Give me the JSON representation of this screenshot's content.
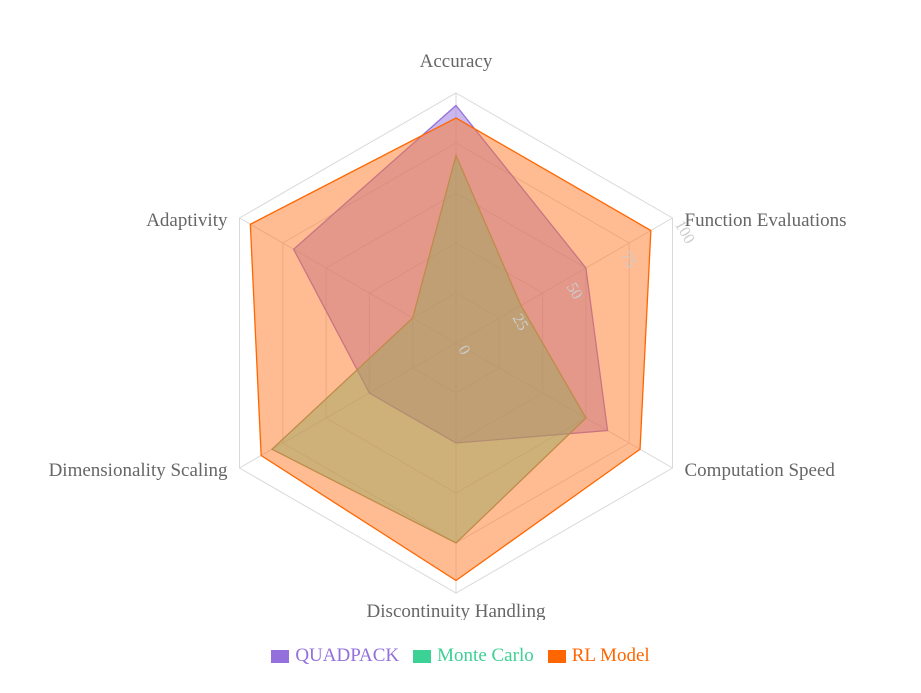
{
  "chart_data": {
    "type": "radar",
    "categories": [
      "Accuracy",
      "Function Evaluations",
      "Computation Speed",
      "Discontinuity Handling",
      "Dimensionality Scaling",
      "Adaptivity"
    ],
    "r_ticks": [
      0,
      25,
      50,
      75,
      100
    ],
    "rlim": [
      0,
      100
    ],
    "grid": true,
    "legend_position": "bottom",
    "series": [
      {
        "name": "QUADPACK",
        "values": [
          95,
          60,
          70,
          40,
          40,
          75
        ],
        "color": "#9370db",
        "fill": "rgba(147,112,219,0.5)"
      },
      {
        "name": "Monte Carlo",
        "values": [
          75,
          30,
          60,
          80,
          85,
          20
        ],
        "color": "#7f9d6e",
        "legend_color": "#3cd195",
        "fill": "rgba(60,209,149,0.5)"
      },
      {
        "name": "RL Model",
        "values": [
          90,
          90,
          85,
          95,
          90,
          95
        ],
        "color": "#ff6600",
        "legend_color": "#ff6600",
        "fill": "rgba(255,122,40,0.5)"
      }
    ]
  }
}
